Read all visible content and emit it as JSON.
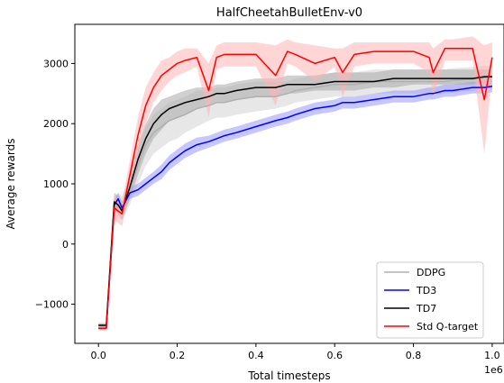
{
  "chart_data": {
    "type": "line",
    "title": "HalfCheetahBulletEnv-v0",
    "xlabel": "Total timesteps",
    "ylabel": "Average rewards",
    "x_offset_label": "1e6",
    "xlim": [
      -0.06,
      1.03
    ],
    "ylim": [
      -1650,
      3650
    ],
    "xticks": [
      0.0,
      0.2,
      0.4,
      0.6,
      0.8,
      1.0
    ],
    "xtick_labels": [
      "0.0",
      "0.2",
      "0.4",
      "0.6",
      "0.8",
      "1.0"
    ],
    "yticks": [
      -1000,
      0,
      1000,
      2000,
      3000
    ],
    "ytick_labels": [
      "−1000",
      "0",
      "1000",
      "2000",
      "3000"
    ],
    "grid": false,
    "legend_position": "lower-right",
    "x": [
      0.0,
      0.02,
      0.04,
      0.05,
      0.06,
      0.08,
      0.1,
      0.12,
      0.14,
      0.16,
      0.18,
      0.2,
      0.22,
      0.25,
      0.28,
      0.3,
      0.32,
      0.35,
      0.4,
      0.45,
      0.48,
      0.5,
      0.55,
      0.6,
      0.62,
      0.65,
      0.7,
      0.75,
      0.8,
      0.84,
      0.85,
      0.88,
      0.9,
      0.95,
      0.98,
      1.0
    ],
    "series": [
      {
        "name": "DDPG",
        "color": "#b0b0b0",
        "band_color": "#d3d3d3",
        "values": [
          -1350,
          -1350,
          500,
          650,
          600,
          900,
          1300,
          1650,
          1850,
          1950,
          2050,
          2100,
          2150,
          2250,
          2300,
          2350,
          2350,
          2400,
          2450,
          2450,
          2500,
          2550,
          2600,
          2650,
          2650,
          2650,
          2700,
          2700,
          2700,
          2700,
          2700,
          2700,
          2720,
          2740,
          2760,
          2780
        ],
        "lower": [
          -1400,
          -1400,
          300,
          450,
          400,
          650,
          1000,
          1300,
          1500,
          1600,
          1700,
          1750,
          1850,
          1950,
          2050,
          2100,
          2100,
          2150,
          2200,
          2250,
          2300,
          2350,
          2400,
          2450,
          2450,
          2450,
          2500,
          2500,
          2500,
          2500,
          2500,
          2500,
          2520,
          2540,
          2560,
          2580
        ],
        "upper": [
          -1300,
          -1300,
          700,
          850,
          800,
          1150,
          1600,
          1950,
          2150,
          2250,
          2350,
          2400,
          2450,
          2550,
          2550,
          2600,
          2600,
          2650,
          2700,
          2700,
          2700,
          2750,
          2800,
          2850,
          2850,
          2850,
          2900,
          2900,
          2900,
          2900,
          2900,
          2900,
          2920,
          2940,
          2960,
          2960
        ]
      },
      {
        "name": "TD3",
        "color": "#0000ff",
        "band_color": "#9999ff",
        "values": [
          -1400,
          -1400,
          650,
          750,
          600,
          850,
          900,
          1000,
          1100,
          1200,
          1350,
          1450,
          1550,
          1650,
          1700,
          1750,
          1800,
          1850,
          1950,
          2050,
          2100,
          2150,
          2250,
          2300,
          2350,
          2350,
          2400,
          2450,
          2450,
          2500,
          2500,
          2550,
          2550,
          2600,
          2600,
          2620
        ],
        "lower": [
          -1430,
          -1430,
          550,
          650,
          500,
          750,
          800,
          900,
          1000,
          1080,
          1230,
          1330,
          1430,
          1530,
          1600,
          1650,
          1700,
          1750,
          1850,
          1950,
          2000,
          2050,
          2150,
          2200,
          2250,
          2250,
          2300,
          2350,
          2350,
          2400,
          2400,
          2450,
          2450,
          2500,
          2500,
          2520
        ],
        "upper": [
          -1370,
          -1370,
          750,
          850,
          700,
          950,
          1000,
          1100,
          1200,
          1320,
          1470,
          1570,
          1670,
          1770,
          1800,
          1850,
          1900,
          1950,
          2050,
          2150,
          2200,
          2250,
          2350,
          2400,
          2450,
          2450,
          2500,
          2550,
          2550,
          2600,
          2600,
          2650,
          2650,
          2700,
          2700,
          2720
        ]
      },
      {
        "name": "TD7",
        "color": "#000000",
        "band_color": "#a9a9a9",
        "values": [
          -1350,
          -1350,
          700,
          650,
          550,
          950,
          1400,
          1750,
          2000,
          2150,
          2250,
          2300,
          2350,
          2400,
          2450,
          2500,
          2500,
          2550,
          2600,
          2600,
          2650,
          2650,
          2650,
          2700,
          2700,
          2700,
          2700,
          2750,
          2750,
          2750,
          2750,
          2750,
          2750,
          2750,
          2780,
          2780
        ],
        "lower": [
          -1380,
          -1380,
          550,
          500,
          400,
          750,
          1150,
          1500,
          1750,
          1900,
          2050,
          2100,
          2150,
          2250,
          2300,
          2350,
          2350,
          2400,
          2450,
          2450,
          2500,
          2500,
          2550,
          2550,
          2550,
          2550,
          2600,
          2600,
          2650,
          2650,
          2650,
          2650,
          2650,
          2650,
          2700,
          2700
        ],
        "upper": [
          -1320,
          -1320,
          850,
          800,
          700,
          1150,
          1650,
          2000,
          2250,
          2400,
          2450,
          2500,
          2550,
          2600,
          2600,
          2650,
          2650,
          2700,
          2750,
          2750,
          2800,
          2800,
          2800,
          2850,
          2850,
          2850,
          2850,
          2900,
          2900,
          2900,
          2900,
          2900,
          2900,
          2900,
          2900,
          2900
        ],
        "dash_to": null
      },
      {
        "name": "Std Q-target",
        "color": "#ff0000",
        "band_color": "#ffb3b3",
        "values": [
          -1400,
          -1400,
          600,
          550,
          500,
          1150,
          1800,
          2300,
          2600,
          2800,
          2900,
          3000,
          3050,
          3100,
          2550,
          3100,
          3150,
          3150,
          3150,
          2800,
          3200,
          3150,
          3000,
          3100,
          2850,
          3150,
          3200,
          3200,
          3200,
          3100,
          2850,
          3250,
          3250,
          3250,
          2400,
          3100
        ],
        "lower": [
          -1430,
          -1430,
          400,
          350,
          300,
          900,
          1500,
          2000,
          2350,
          2550,
          2700,
          2800,
          2850,
          2950,
          2100,
          2900,
          2950,
          2950,
          2950,
          2300,
          3000,
          2950,
          2700,
          2950,
          2450,
          2950,
          3000,
          3000,
          3000,
          2850,
          2450,
          3050,
          3050,
          3050,
          1500,
          2850
        ],
        "upper": [
          -1370,
          -1370,
          800,
          750,
          700,
          1400,
          2100,
          2600,
          2850,
          3050,
          3100,
          3200,
          3250,
          3250,
          3000,
          3300,
          3350,
          3350,
          3350,
          3300,
          3400,
          3350,
          3300,
          3250,
          3250,
          3350,
          3350,
          3350,
          3350,
          3350,
          3250,
          3400,
          3400,
          3450,
          3300,
          3350
        ]
      }
    ]
  }
}
